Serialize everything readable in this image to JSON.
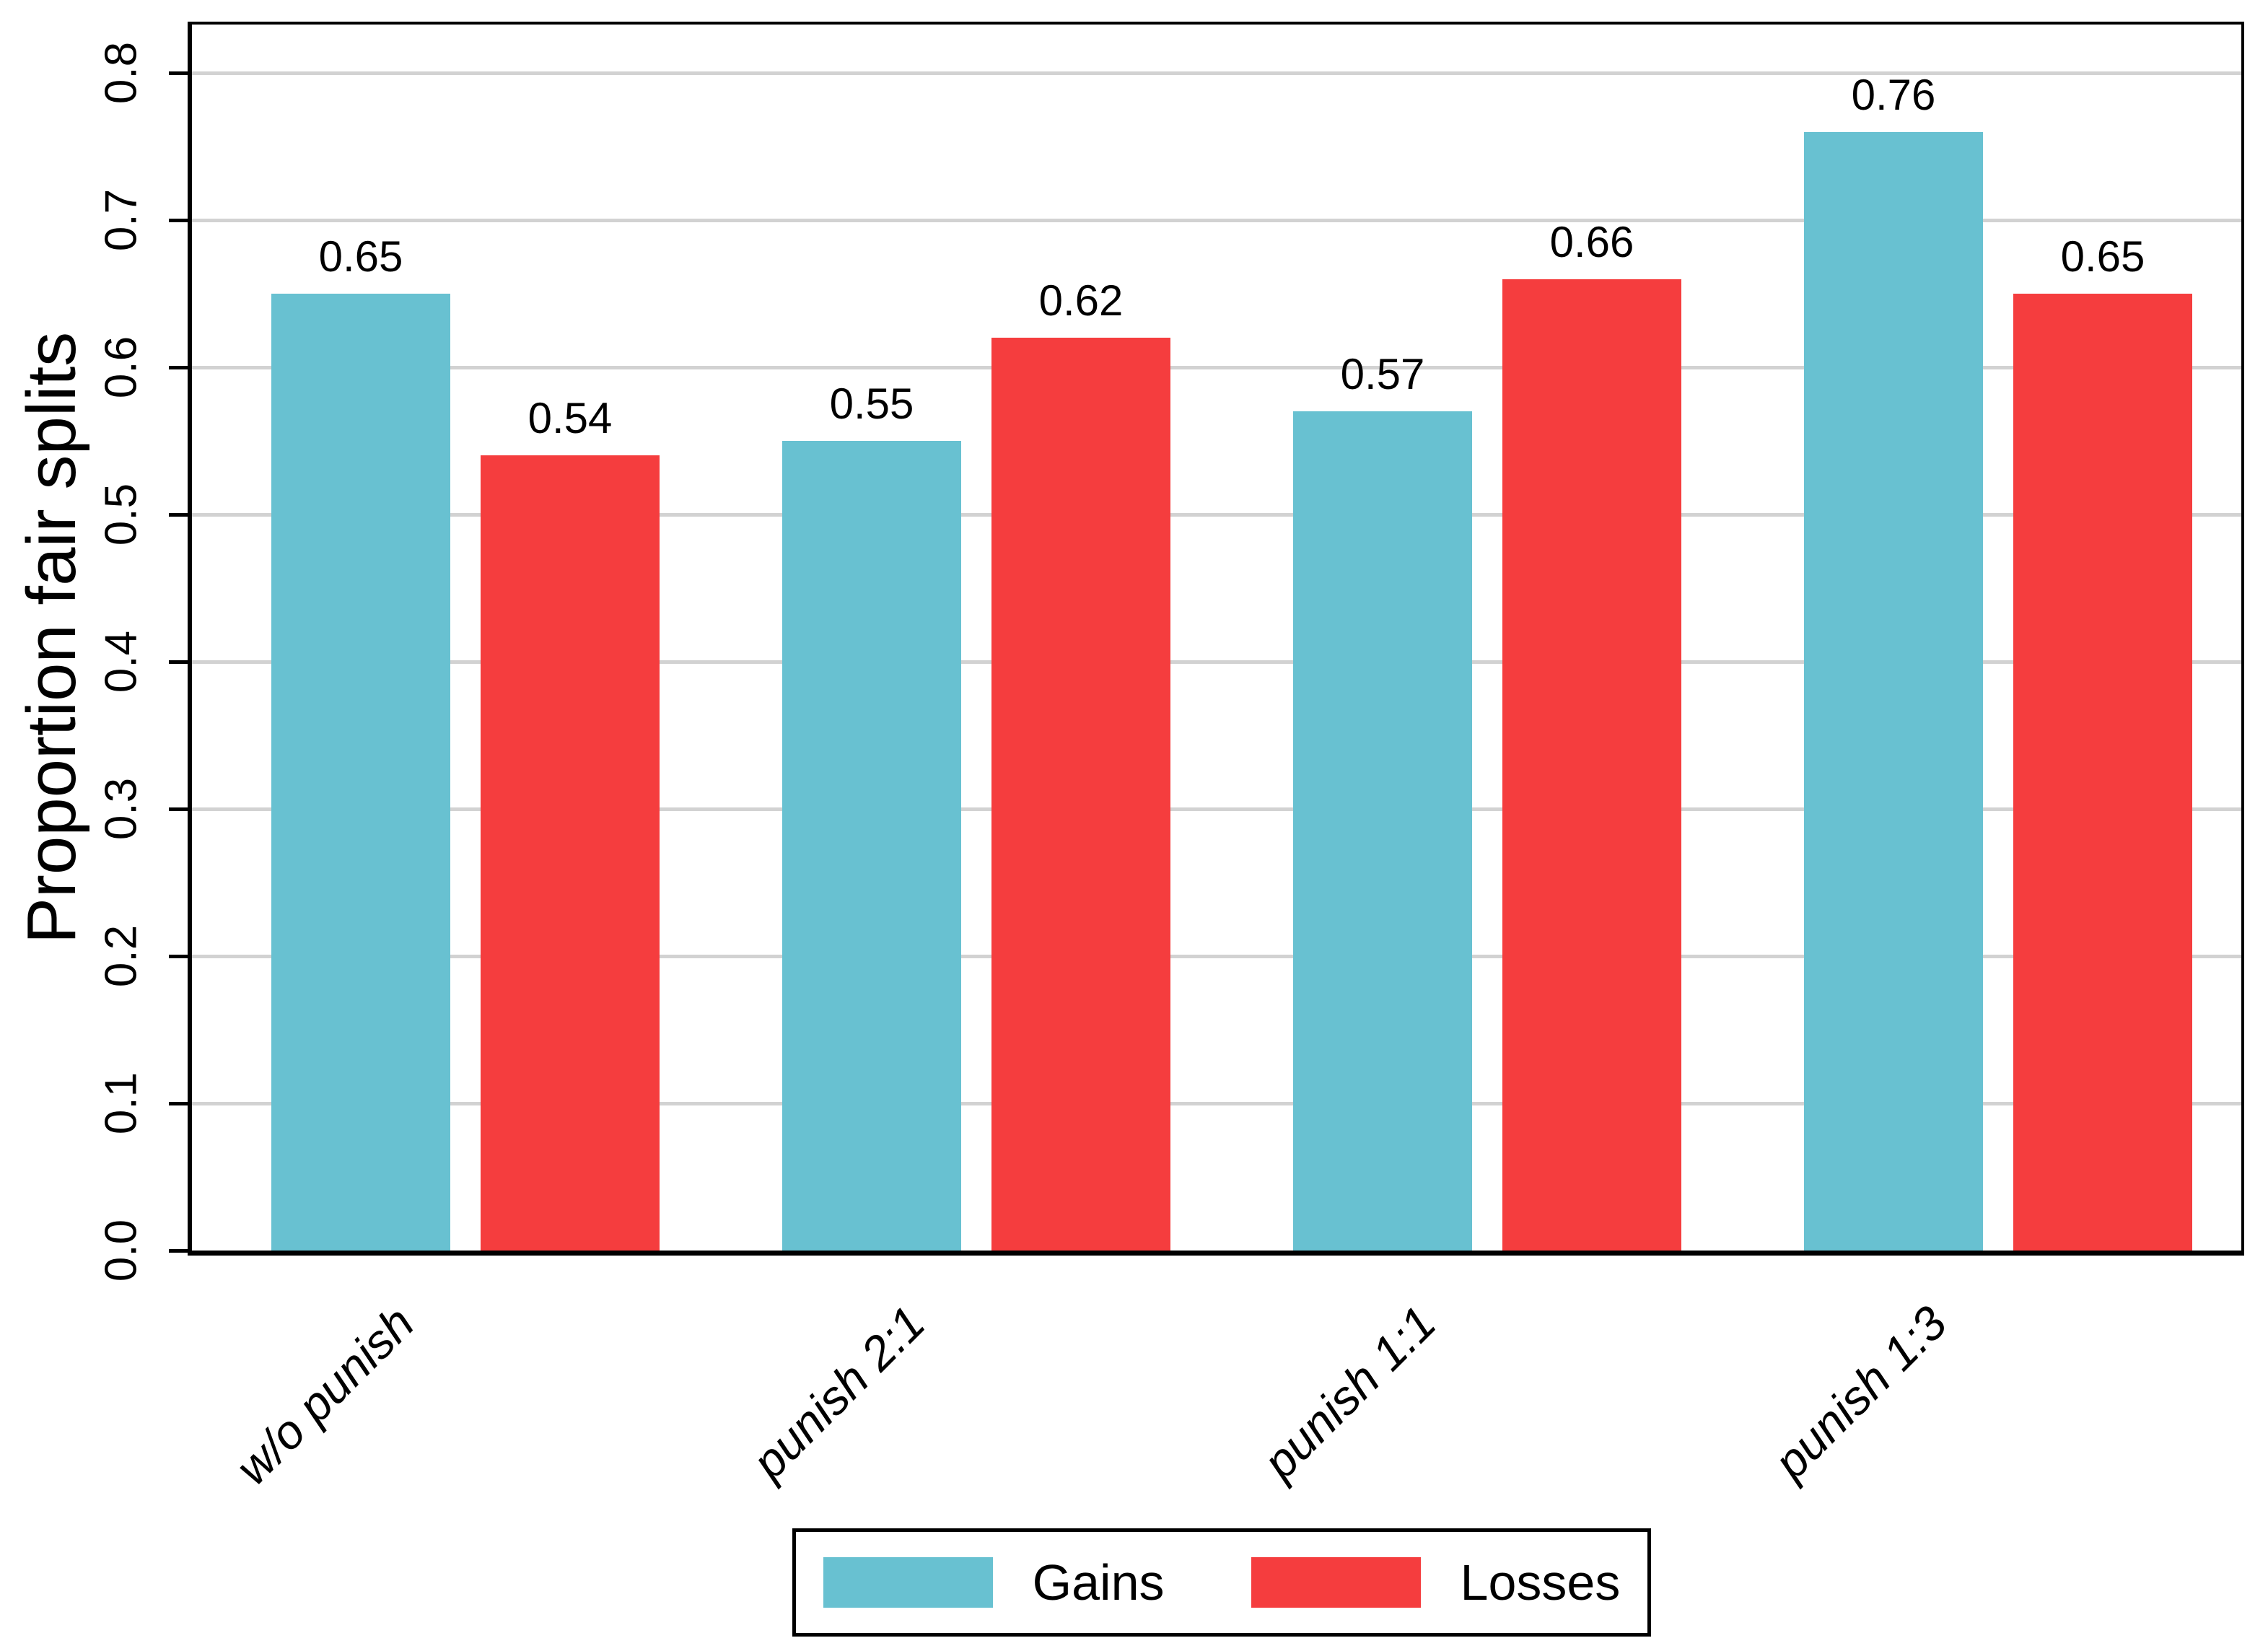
{
  "chart_data": {
    "type": "bar",
    "title": "",
    "categories": [
      "w/o punish",
      "punish 2:1",
      "punish 1:1",
      "punish 1:3"
    ],
    "series": [
      {
        "name": "Gains",
        "color": "#68c1d1",
        "values": [
          0.65,
          0.55,
          0.57,
          0.76
        ],
        "labels": [
          "0.65",
          "0.55",
          "0.57",
          "0.76"
        ]
      },
      {
        "name": "Losses",
        "color": "#f53d3e",
        "values": [
          0.54,
          0.62,
          0.66,
          0.65
        ],
        "labels": [
          "0.54",
          "0.62",
          "0.66",
          "0.65"
        ]
      }
    ],
    "xlabel": "",
    "ylabel": "Proportion fair splits",
    "ylim": [
      0.0,
      0.835
    ],
    "yticks": [
      {
        "value": 0.0,
        "label": "0.0"
      },
      {
        "value": 0.1,
        "label": "0.1"
      },
      {
        "value": 0.2,
        "label": "0.2"
      },
      {
        "value": 0.3,
        "label": "0.3"
      },
      {
        "value": 0.4,
        "label": "0.4"
      },
      {
        "value": 0.5,
        "label": "0.5"
      },
      {
        "value": 0.6,
        "label": "0.6"
      },
      {
        "value": 0.7,
        "label": "0.7"
      },
      {
        "value": 0.8,
        "label": "0.8"
      }
    ],
    "grid": true,
    "grid_color": "#d2d2d2",
    "axis_color": "#000000",
    "value_labels_shown": true,
    "legend_position": "bottom-center",
    "x_label_rotation_deg": -45,
    "y_tick_rotation_deg": -90
  },
  "legend": {
    "items": [
      {
        "label": "Gains",
        "color": "#68c1d1"
      },
      {
        "label": "Losses",
        "color": "#f53d3e"
      }
    ]
  }
}
